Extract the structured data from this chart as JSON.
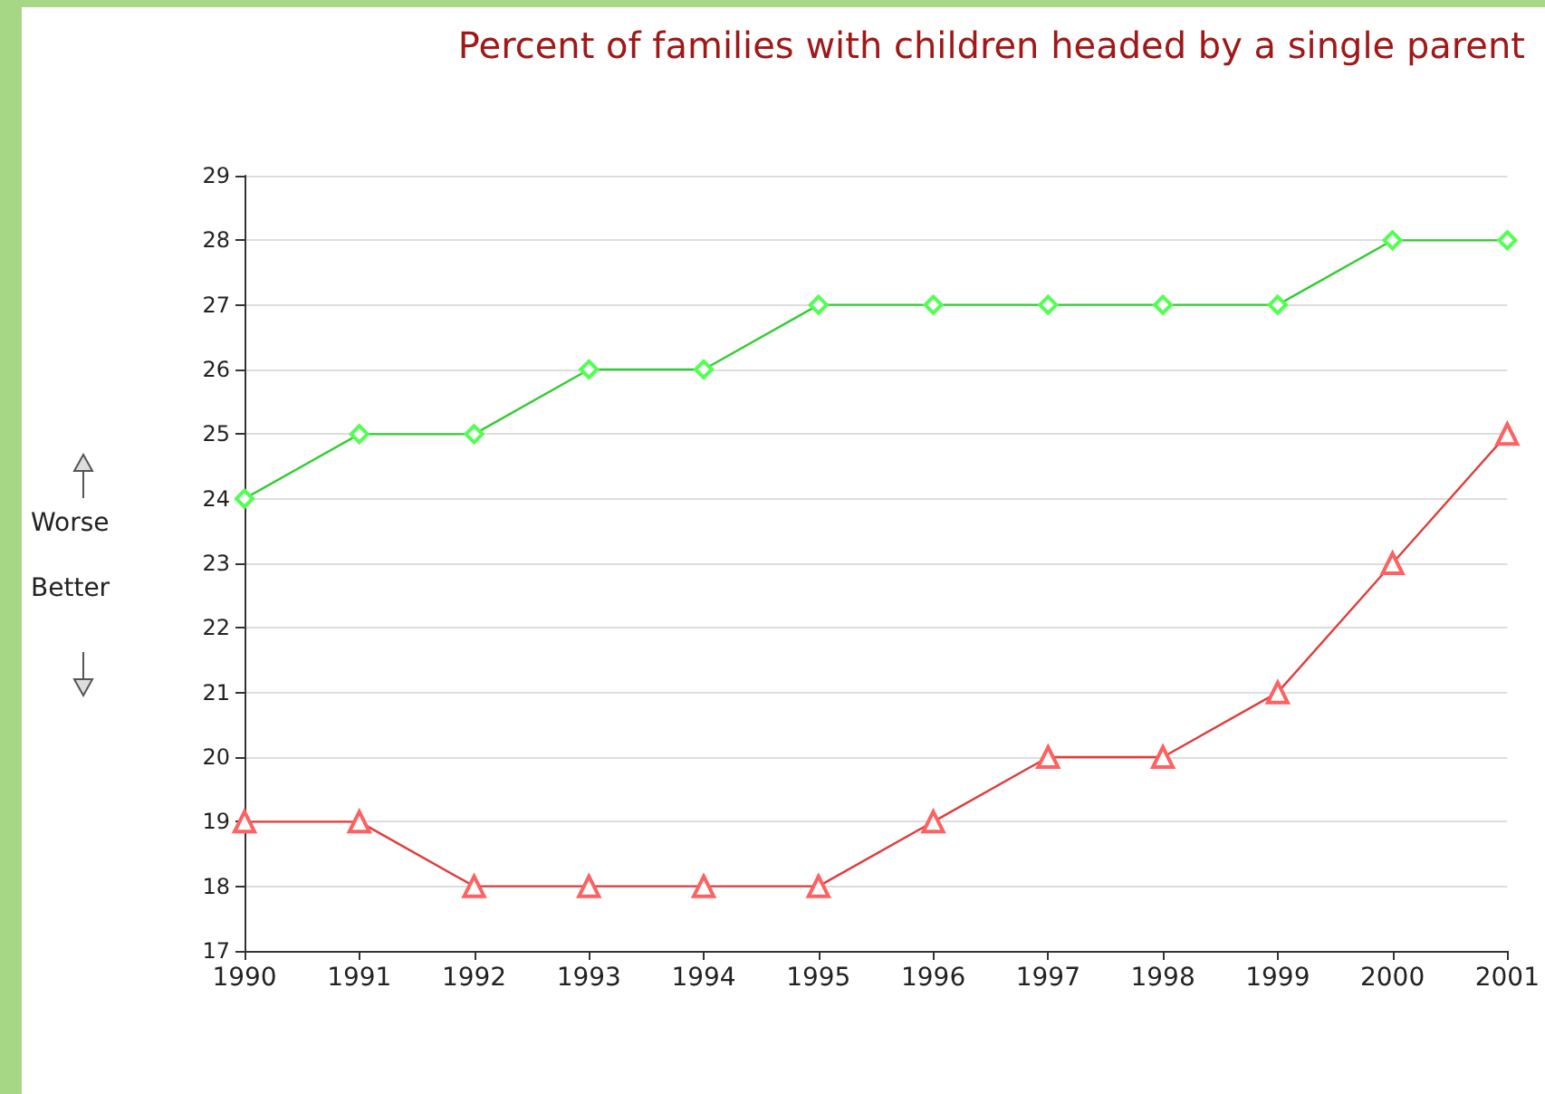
{
  "chart_data": {
    "type": "line",
    "title": "Percent of families with children headed by a single parent",
    "annotations": [
      "Worse",
      "Better"
    ],
    "categories": [
      "1990",
      "1991",
      "1992",
      "1993",
      "1994",
      "1995",
      "1996",
      "1997",
      "1998",
      "1999",
      "2000",
      "2001"
    ],
    "series": [
      {
        "color": "#33cc33",
        "marker": "diamond",
        "values": [
          24,
          25,
          25,
          26,
          26,
          27,
          27,
          27,
          27,
          27,
          28,
          28
        ]
      },
      {
        "color": "#e03c3c",
        "marker": "triangle",
        "values": [
          19,
          19,
          18,
          18,
          18,
          18,
          19,
          20,
          20,
          21,
          23,
          25
        ]
      }
    ],
    "ylim": [
      17,
      29
    ],
    "yticks": [
      17,
      18,
      19,
      20,
      21,
      22,
      23,
      24,
      25,
      26,
      27,
      28,
      29
    ],
    "grid": "y"
  }
}
